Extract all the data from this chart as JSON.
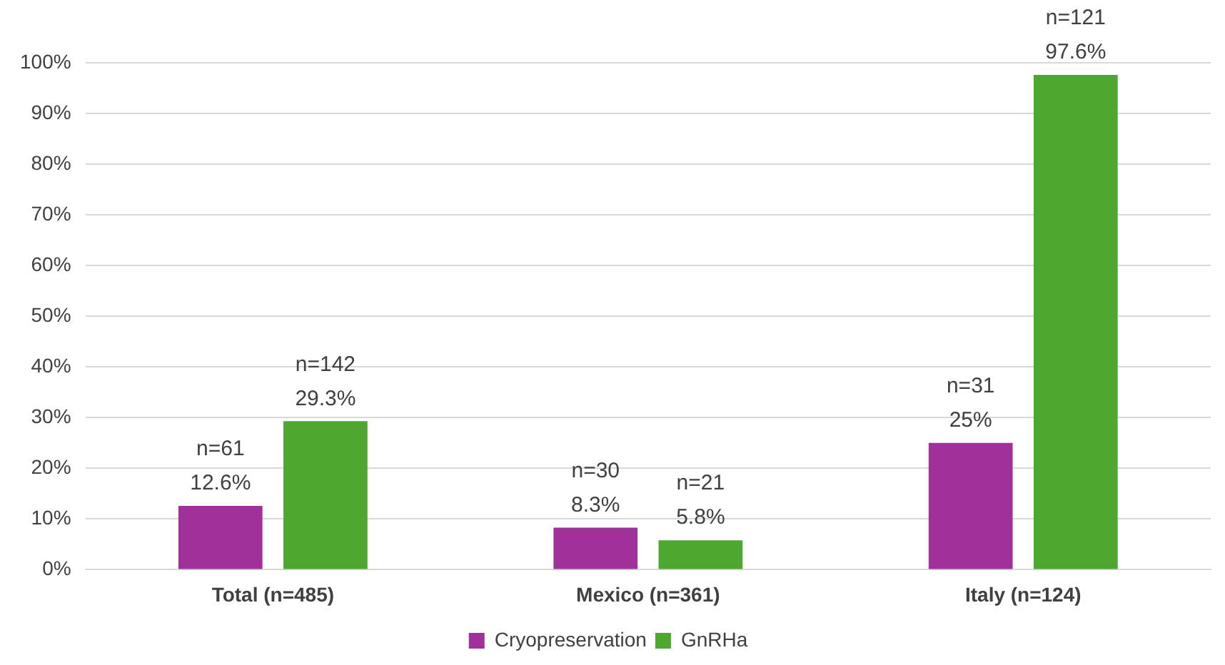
{
  "chart_data": {
    "type": "bar",
    "categories": [
      "Total (n=485)",
      "Mexico (n=361)",
      "Italy (n=124)"
    ],
    "series": [
      {
        "name": "Cryopreservation",
        "color": "#a0309a",
        "values": [
          12.6,
          8.3,
          25
        ],
        "value_labels": [
          "n=61\n12.6%",
          "n=30\n8.3%",
          "n=31\n25%"
        ]
      },
      {
        "name": "GnRHa",
        "color": "#4ea72e",
        "values": [
          29.3,
          5.8,
          97.6
        ],
        "value_labels": [
          "n=142\n29.3%",
          "n=21\n5.8%",
          "n=121\n97.6%"
        ]
      }
    ],
    "ylim": [
      0,
      100
    ],
    "yticks": [
      {
        "value": 0,
        "label": "0%"
      },
      {
        "value": 10,
        "label": "10%"
      },
      {
        "value": 20,
        "label": "20%"
      },
      {
        "value": 30,
        "label": "30%"
      },
      {
        "value": 40,
        "label": "40%"
      },
      {
        "value": 50,
        "label": "50%"
      },
      {
        "value": 60,
        "label": "60%"
      },
      {
        "value": 70,
        "label": "70%"
      },
      {
        "value": 80,
        "label": "80%"
      },
      {
        "value": 90,
        "label": "90%"
      },
      {
        "value": 100,
        "label": "100%"
      }
    ],
    "grid": "y",
    "legend": "bottom"
  }
}
